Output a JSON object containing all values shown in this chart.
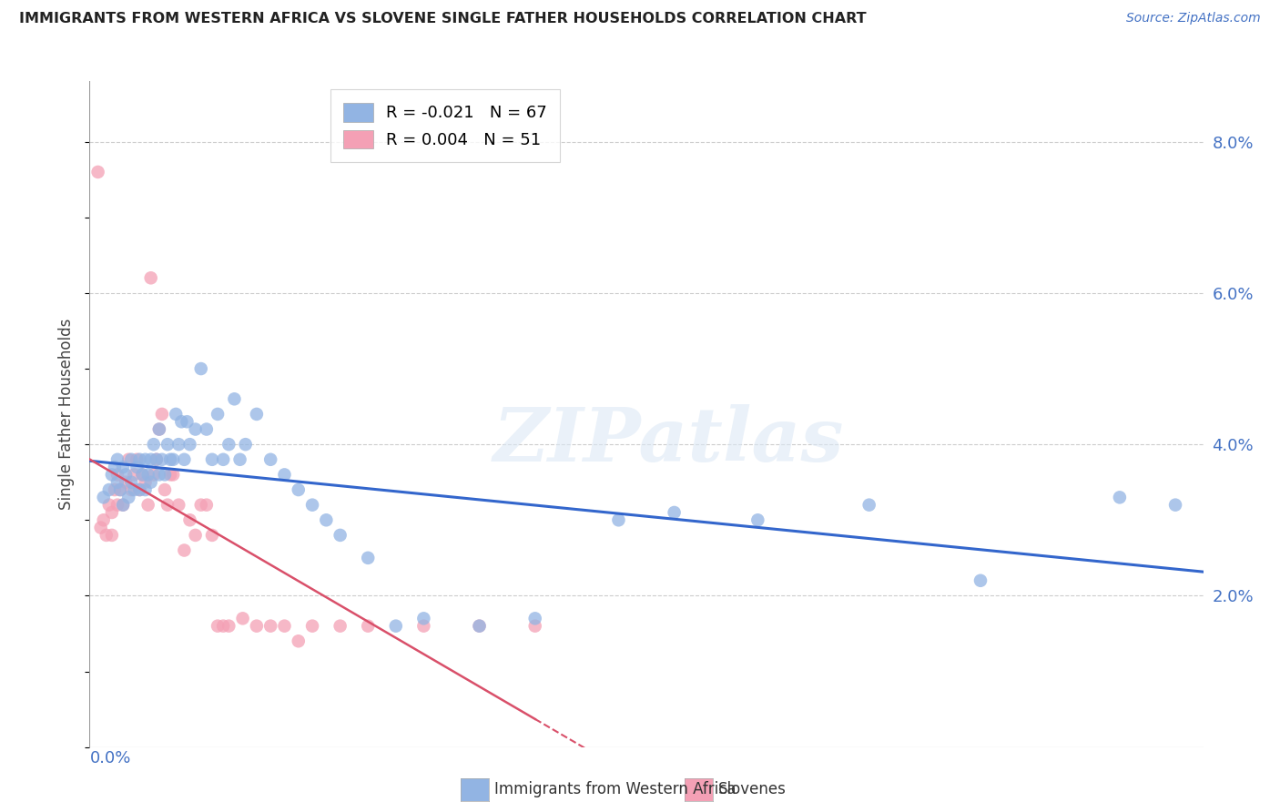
{
  "title": "IMMIGRANTS FROM WESTERN AFRICA VS SLOVENE SINGLE FATHER HOUSEHOLDS CORRELATION CHART",
  "source": "Source: ZipAtlas.com",
  "ylabel": "Single Father Households",
  "y_ticks": [
    0.0,
    0.02,
    0.04,
    0.06,
    0.08
  ],
  "y_tick_labels": [
    "",
    "2.0%",
    "4.0%",
    "6.0%",
    "8.0%"
  ],
  "x_min": 0.0,
  "x_max": 0.4,
  "y_min": 0.0,
  "y_max": 0.088,
  "legend_blue_r": "-0.021",
  "legend_blue_n": "67",
  "legend_pink_r": "0.004",
  "legend_pink_n": "51",
  "legend_label_blue": "Immigrants from Western Africa",
  "legend_label_pink": "Slovenes",
  "blue_color": "#92b4e3",
  "pink_color": "#f4a0b5",
  "blue_line_color": "#3366cc",
  "pink_line_solid_color": "#d9506a",
  "pink_line_dash_color": "#d9506a",
  "watermark_text": "ZIPatlas",
  "blue_x": [
    0.005,
    0.007,
    0.008,
    0.009,
    0.01,
    0.01,
    0.011,
    0.012,
    0.012,
    0.013,
    0.014,
    0.015,
    0.015,
    0.016,
    0.017,
    0.018,
    0.018,
    0.019,
    0.02,
    0.02,
    0.021,
    0.022,
    0.022,
    0.023,
    0.024,
    0.025,
    0.025,
    0.026,
    0.027,
    0.028,
    0.029,
    0.03,
    0.031,
    0.032,
    0.033,
    0.034,
    0.035,
    0.036,
    0.038,
    0.04,
    0.042,
    0.044,
    0.046,
    0.048,
    0.05,
    0.052,
    0.054,
    0.056,
    0.06,
    0.065,
    0.07,
    0.075,
    0.08,
    0.085,
    0.09,
    0.1,
    0.11,
    0.12,
    0.14,
    0.16,
    0.19,
    0.21,
    0.24,
    0.28,
    0.32,
    0.37,
    0.39
  ],
  "blue_y": [
    0.033,
    0.034,
    0.036,
    0.037,
    0.035,
    0.038,
    0.034,
    0.032,
    0.037,
    0.036,
    0.033,
    0.038,
    0.035,
    0.034,
    0.037,
    0.038,
    0.034,
    0.036,
    0.038,
    0.034,
    0.036,
    0.038,
    0.035,
    0.04,
    0.038,
    0.036,
    0.042,
    0.038,
    0.036,
    0.04,
    0.038,
    0.038,
    0.044,
    0.04,
    0.043,
    0.038,
    0.043,
    0.04,
    0.042,
    0.05,
    0.042,
    0.038,
    0.044,
    0.038,
    0.04,
    0.046,
    0.038,
    0.04,
    0.044,
    0.038,
    0.036,
    0.034,
    0.032,
    0.03,
    0.028,
    0.025,
    0.016,
    0.017,
    0.016,
    0.017,
    0.03,
    0.031,
    0.03,
    0.032,
    0.022,
    0.033,
    0.032
  ],
  "pink_x": [
    0.003,
    0.004,
    0.005,
    0.006,
    0.007,
    0.008,
    0.008,
    0.009,
    0.01,
    0.01,
    0.011,
    0.012,
    0.013,
    0.014,
    0.015,
    0.016,
    0.017,
    0.018,
    0.019,
    0.02,
    0.021,
    0.022,
    0.023,
    0.024,
    0.025,
    0.026,
    0.027,
    0.028,
    0.029,
    0.03,
    0.032,
    0.034,
    0.036,
    0.038,
    0.04,
    0.042,
    0.044,
    0.046,
    0.048,
    0.05,
    0.055,
    0.06,
    0.065,
    0.07,
    0.075,
    0.08,
    0.09,
    0.1,
    0.12,
    0.14,
    0.16
  ],
  "pink_y": [
    0.076,
    0.029,
    0.03,
    0.028,
    0.032,
    0.031,
    0.028,
    0.034,
    0.036,
    0.032,
    0.034,
    0.032,
    0.035,
    0.038,
    0.034,
    0.036,
    0.038,
    0.034,
    0.036,
    0.035,
    0.032,
    0.062,
    0.036,
    0.038,
    0.042,
    0.044,
    0.034,
    0.032,
    0.036,
    0.036,
    0.032,
    0.026,
    0.03,
    0.028,
    0.032,
    0.032,
    0.028,
    0.016,
    0.016,
    0.016,
    0.017,
    0.016,
    0.016,
    0.016,
    0.014,
    0.016,
    0.016,
    0.016,
    0.016,
    0.016,
    0.016
  ]
}
